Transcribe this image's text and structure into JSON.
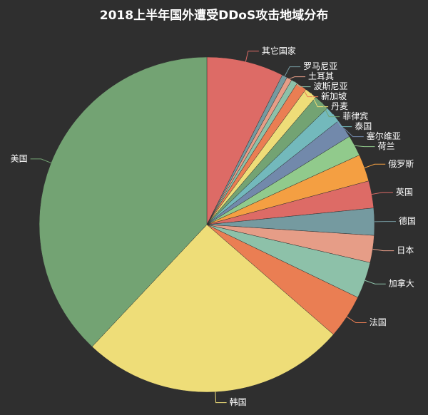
{
  "chart_data": {
    "type": "pie",
    "title": "2018上半年国外遭受DDoS攻击地域分布",
    "categories": [
      "其它国家",
      "罗马尼亚",
      "土耳其",
      "波斯尼亚",
      "新加坡",
      "丹麦",
      "菲律宾",
      "泰国",
      "塞尔维亚",
      "荷兰",
      "俄罗斯",
      "英国",
      "德国",
      "日本",
      "加拿大",
      "法国",
      "韩国",
      "美国"
    ],
    "values": [
      7.4,
      0.5,
      0.5,
      0.6,
      1.0,
      1.2,
      1.5,
      1.6,
      1.8,
      2.0,
      2.6,
      2.6,
      2.6,
      2.6,
      3.5,
      4.2,
      25.5,
      37.8
    ],
    "colors": [
      "#dd6b66",
      "#759aa0",
      "#e69d87",
      "#8dc1a9",
      "#ea7e53",
      "#eedd78",
      "#73a373",
      "#73b9bc",
      "#7289ab",
      "#91ca8c",
      "#f49f42",
      "#dd6b66",
      "#759aa0",
      "#e69d87",
      "#8dc1a9",
      "#ea7e53",
      "#eedd78",
      "#73a373"
    ]
  }
}
